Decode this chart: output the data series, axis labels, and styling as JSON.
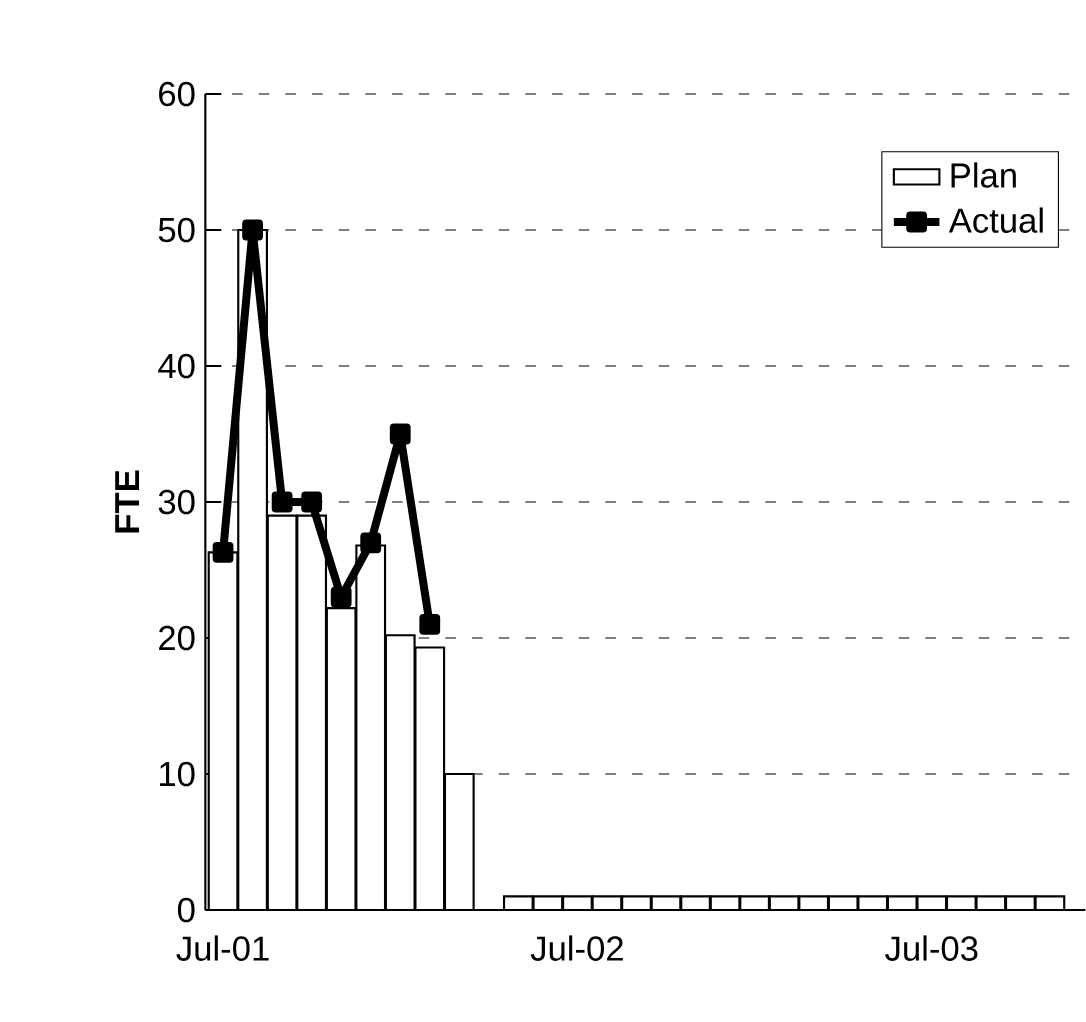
{
  "chart_data": {
    "type": "bar",
    "ylabel": "FTE",
    "categories": [
      "Jul-01",
      null,
      null,
      null,
      null,
      null,
      null,
      null,
      null,
      null,
      null,
      null,
      "Jul-02",
      null,
      null,
      null,
      null,
      null,
      null,
      null,
      null,
      null,
      null,
      null,
      "Jul-03",
      null,
      null,
      null,
      null
    ],
    "series": [
      {
        "name": "Plan",
        "color": "#ffffff",
        "values": [
          26.3,
          50,
          29,
          29,
          22.2,
          26.8,
          20.2,
          19.3,
          10,
          null,
          1,
          1,
          1,
          1,
          1,
          1,
          1,
          1,
          1,
          1,
          1,
          1,
          1,
          1,
          1,
          1,
          1,
          1,
          1
        ]
      },
      {
        "name": "Actual",
        "type": "line",
        "color": "#000000",
        "marker": "square",
        "line_style": "solid",
        "values": [
          26.3,
          50,
          30,
          30,
          23,
          27,
          35,
          21,
          null,
          null,
          null,
          null,
          null,
          null,
          null,
          null,
          null,
          null,
          null,
          null,
          null,
          null,
          null,
          null,
          null,
          null,
          null,
          null,
          null
        ]
      }
    ],
    "ylim": [
      0,
      60
    ],
    "yticks": [
      0,
      10,
      20,
      30,
      40,
      50,
      60
    ],
    "grid": "y",
    "legend": "top right"
  }
}
